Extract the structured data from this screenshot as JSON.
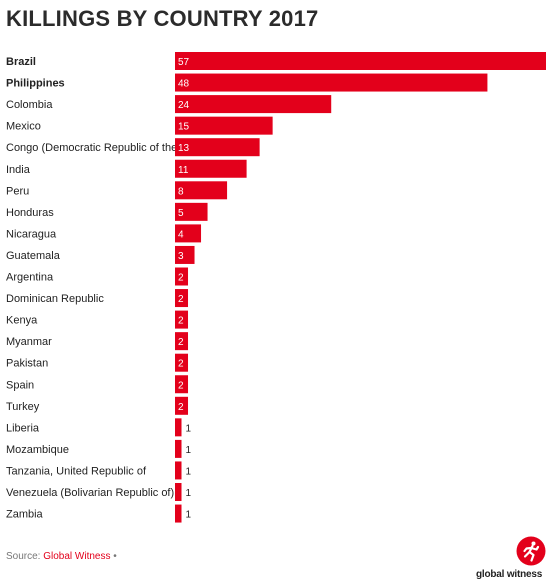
{
  "chart_data": {
    "type": "bar",
    "orientation": "horizontal",
    "title": "KILLINGS BY COUNTRY 2017",
    "xlabel": "",
    "ylabel": "",
    "xlim": [
      0,
      57
    ],
    "grid": false,
    "bar_color": "#e3001b",
    "categories": [
      "Brazil",
      "Philippines",
      "Colombia",
      "Mexico",
      "Congo (Democratic Republic of the)",
      "India",
      "Peru",
      "Honduras",
      "Nicaragua",
      "Guatemala",
      "Argentina",
      "Dominican Republic",
      "Kenya",
      "Myanmar",
      "Pakistan",
      "Spain",
      "Turkey",
      "Liberia",
      "Mozambique",
      "Tanzania, United Republic of",
      "Venezuela (Bolivarian Republic of)",
      "Zambia"
    ],
    "values": [
      57,
      48,
      24,
      15,
      13,
      11,
      8,
      5,
      4,
      3,
      2,
      2,
      2,
      2,
      2,
      2,
      2,
      1,
      1,
      1,
      1,
      1
    ],
    "bold_categories": [
      "Brazil",
      "Philippines"
    ]
  },
  "footer": {
    "source_label": "Source: ",
    "source_link": "Global Witness",
    "source_suffix": " •"
  },
  "logo": {
    "icon": "global-witness-logo-icon",
    "text": "global witness",
    "color": "#e3001b"
  }
}
